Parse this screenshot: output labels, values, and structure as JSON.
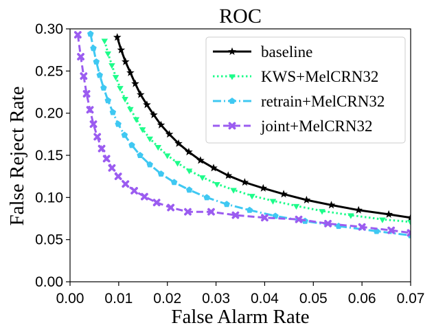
{
  "chart_data": {
    "type": "line",
    "title": "ROC",
    "xlabel": "False Alarm Rate",
    "ylabel": "False Reject Rate",
    "xlim": [
      0.0,
      0.07
    ],
    "ylim": [
      0.0,
      0.3
    ],
    "xticks": [
      "0.00",
      "0.01",
      "0.02",
      "0.03",
      "0.04",
      "0.05",
      "0.06",
      "0.07"
    ],
    "yticks": [
      "0.00",
      "0.05",
      "0.10",
      "0.15",
      "0.20",
      "0.25",
      "0.30"
    ],
    "grid": false,
    "legend_position": "top-right",
    "series": [
      {
        "name": "baseline",
        "color": "#000000",
        "linestyle": "solid",
        "marker": "star",
        "x": [
          0.0097,
          0.0105,
          0.0114,
          0.0124,
          0.0134,
          0.0145,
          0.0158,
          0.0172,
          0.0187,
          0.0204,
          0.0223,
          0.0244,
          0.0268,
          0.0295,
          0.0325,
          0.0359,
          0.0397,
          0.0439,
          0.0486,
          0.0537,
          0.0593,
          0.0655,
          0.07
        ],
        "y": [
          0.29,
          0.275,
          0.261,
          0.248,
          0.235,
          0.222,
          0.21,
          0.198,
          0.186,
          0.175,
          0.164,
          0.154,
          0.144,
          0.135,
          0.126,
          0.118,
          0.111,
          0.104,
          0.097,
          0.091,
          0.085,
          0.08,
          0.076
        ]
      },
      {
        "name": "KWS+MelCRN32",
        "color": "#1dfc8a",
        "linestyle": "dotted",
        "marker": "triangle-down",
        "x": [
          0.0071,
          0.0078,
          0.0086,
          0.0094,
          0.0103,
          0.0113,
          0.0124,
          0.0136,
          0.0149,
          0.0164,
          0.0181,
          0.02,
          0.0221,
          0.0245,
          0.0272,
          0.0302,
          0.0336,
          0.0374,
          0.0417,
          0.0465,
          0.0518,
          0.0577,
          0.0642,
          0.07
        ],
        "y": [
          0.286,
          0.271,
          0.257,
          0.243,
          0.23,
          0.217,
          0.205,
          0.193,
          0.181,
          0.17,
          0.16,
          0.15,
          0.141,
          0.132,
          0.124,
          0.116,
          0.109,
          0.102,
          0.096,
          0.09,
          0.084,
          0.079,
          0.074,
          0.071
        ]
      },
      {
        "name": "retrain+MelCRN32",
        "color": "#3fc8f2",
        "linestyle": "dashdot",
        "marker": "pentagon",
        "x": [
          0.0042,
          0.0048,
          0.0054,
          0.0061,
          0.0069,
          0.0078,
          0.0088,
          0.0099,
          0.0112,
          0.0127,
          0.0144,
          0.0164,
          0.0187,
          0.0214,
          0.0245,
          0.0281,
          0.0322,
          0.0369,
          0.0422,
          0.0483,
          0.0552,
          0.063,
          0.07
        ],
        "y": [
          0.294,
          0.277,
          0.261,
          0.245,
          0.23,
          0.215,
          0.201,
          0.187,
          0.174,
          0.162,
          0.15,
          0.139,
          0.128,
          0.118,
          0.109,
          0.1,
          0.092,
          0.085,
          0.078,
          0.072,
          0.066,
          0.06,
          0.055
        ]
      },
      {
        "name": "joint+MelCRN32",
        "color": "#9b5cf0",
        "linestyle": "dashed",
        "marker": "x",
        "x": [
          0.0016,
          0.0022,
          0.0028,
          0.0034,
          0.0041,
          0.0048,
          0.0056,
          0.0065,
          0.0075,
          0.0086,
          0.0099,
          0.0114,
          0.0132,
          0.0153,
          0.0178,
          0.0207,
          0.0242,
          0.029,
          0.034,
          0.04,
          0.047,
          0.053,
          0.06,
          0.066,
          0.07
        ],
        "y": [
          0.293,
          0.267,
          0.244,
          0.223,
          0.204,
          0.187,
          0.172,
          0.158,
          0.146,
          0.135,
          0.125,
          0.116,
          0.108,
          0.101,
          0.094,
          0.088,
          0.083,
          0.083,
          0.079,
          0.076,
          0.074,
          0.069,
          0.065,
          0.061,
          0.058
        ]
      }
    ]
  }
}
